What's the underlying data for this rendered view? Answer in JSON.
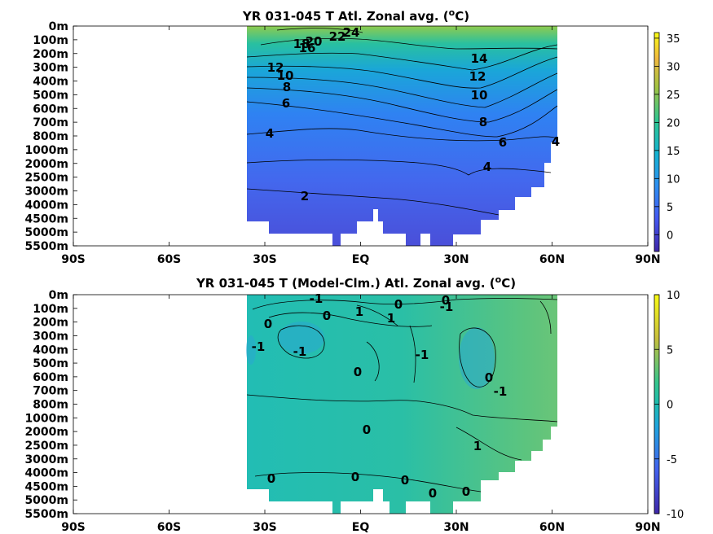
{
  "chart_data": [
    {
      "type": "heatmap",
      "title": "YR 031-045 T Atl. Zonal avg. (",
      "title_unit_sup": "o",
      "title_unit_tail": "C)",
      "x_ticks": [
        "90S",
        "60S",
        "30S",
        "EQ",
        "30N",
        "60N",
        "90N"
      ],
      "x_values": [
        -90,
        -60,
        -30,
        0,
        30,
        60,
        90
      ],
      "y_ticks": [
        "0m",
        "100m",
        "200m",
        "300m",
        "400m",
        "500m",
        "600m",
        "700m",
        "800m",
        "1000m",
        "2000m",
        "2500m",
        "3000m",
        "4000m",
        "4500m",
        "5000m",
        "5500m"
      ],
      "colorbar_ticks": [
        "35",
        "30",
        "25",
        "20",
        "15",
        "10",
        "5",
        "0"
      ],
      "colorbar_values": [
        35,
        30,
        25,
        20,
        15,
        10,
        5,
        0
      ],
      "clim": [
        -3,
        36
      ],
      "contour_labels": [
        "24",
        "22",
        "20",
        "18",
        "16",
        "12",
        "10",
        "8",
        "6",
        "4",
        "2",
        "14",
        "12",
        "10",
        "8",
        "6",
        "4",
        "4"
      ],
      "data_extent_lat": [
        -35,
        64
      ]
    },
    {
      "type": "heatmap",
      "title": "YR 031-045 T (Model-Clm.) Atl. Zonal avg. (",
      "title_unit_sup": "o",
      "title_unit_tail": "C)",
      "x_ticks": [
        "90S",
        "60S",
        "30S",
        "EQ",
        "30N",
        "60N",
        "90N"
      ],
      "x_values": [
        -90,
        -60,
        -30,
        0,
        30,
        60,
        90
      ],
      "y_ticks": [
        "0m",
        "100m",
        "200m",
        "300m",
        "400m",
        "500m",
        "600m",
        "700m",
        "800m",
        "1000m",
        "2000m",
        "2500m",
        "3000m",
        "4000m",
        "4500m",
        "5000m",
        "5500m"
      ],
      "colorbar_ticks": [
        "10",
        "5",
        "0",
        "-5",
        "-10"
      ],
      "colorbar_values": [
        10,
        5,
        0,
        -5,
        -10
      ],
      "clim": [
        -10,
        10
      ],
      "contour_labels": [
        "-1",
        "0",
        "1",
        "0",
        "-1",
        "0",
        "1",
        "0",
        "-1",
        "-1",
        "-1",
        "0",
        "-1",
        "0",
        "0",
        "1",
        "0",
        "0",
        "0",
        "0",
        "0"
      ],
      "data_extent_lat": [
        -35,
        64
      ]
    }
  ]
}
